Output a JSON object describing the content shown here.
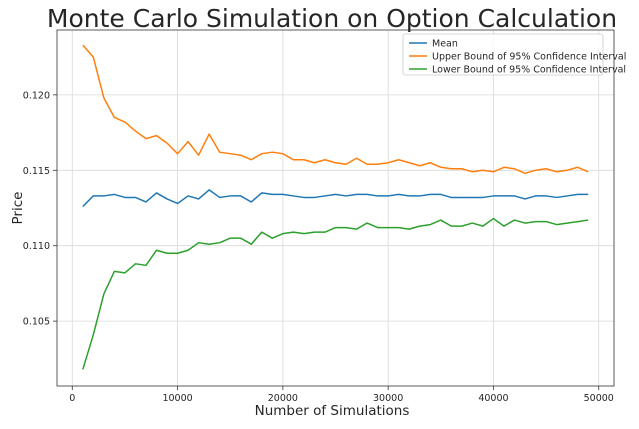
{
  "chart_data": {
    "type": "line",
    "title": "Monte Carlo Simulation on Option Calculation",
    "xlabel": "Number of Simulations",
    "ylabel": "Price",
    "xlim": [
      -1450,
      51450
    ],
    "ylim": [
      0.1007,
      0.1243
    ],
    "xticks": [
      0,
      10000,
      20000,
      30000,
      40000,
      50000
    ],
    "yticks": [
      0.105,
      0.11,
      0.115,
      0.12
    ],
    "ytick_labels": [
      "0.105",
      "0.110",
      "0.115",
      "0.120"
    ],
    "grid": true,
    "legend_position": "top-right",
    "x": [
      1000,
      2000,
      3000,
      4000,
      5000,
      6000,
      7000,
      8000,
      9000,
      10000,
      11000,
      12000,
      13000,
      14000,
      15000,
      16000,
      17000,
      18000,
      19000,
      20000,
      21000,
      22000,
      23000,
      24000,
      25000,
      26000,
      27000,
      28000,
      29000,
      30000,
      31000,
      32000,
      33000,
      34000,
      35000,
      36000,
      37000,
      38000,
      39000,
      40000,
      41000,
      42000,
      43000,
      44000,
      45000,
      46000,
      47000,
      48000,
      49000
    ],
    "series": [
      {
        "name": "Mean",
        "color": "#1f77b4",
        "values": [
          0.1126,
          0.1133,
          0.1133,
          0.1134,
          0.1132,
          0.1132,
          0.1129,
          0.1135,
          0.1131,
          0.1128,
          0.1133,
          0.1131,
          0.1137,
          0.1132,
          0.1133,
          0.1133,
          0.1129,
          0.1135,
          0.1134,
          0.1134,
          0.1133,
          0.1132,
          0.1132,
          0.1133,
          0.1134,
          0.1133,
          0.1134,
          0.1134,
          0.1133,
          0.1133,
          0.1134,
          0.1133,
          0.1133,
          0.1134,
          0.1134,
          0.1132,
          0.1132,
          0.1132,
          0.1132,
          0.1133,
          0.1133,
          0.1133,
          0.1131,
          0.1133,
          0.1133,
          0.1132,
          0.1133,
          0.1134,
          0.1134
        ]
      },
      {
        "name": "Upper Bound of 95% Confidence Interval",
        "color": "#ff7f0e",
        "values": [
          0.1233,
          0.1225,
          0.1198,
          0.1185,
          0.1182,
          0.1176,
          0.1171,
          0.1173,
          0.1168,
          0.1161,
          0.1169,
          0.116,
          0.1174,
          0.1162,
          0.1161,
          0.116,
          0.1157,
          0.1161,
          0.1162,
          0.1161,
          0.1157,
          0.1157,
          0.1155,
          0.1157,
          0.1155,
          0.1154,
          0.1158,
          0.1154,
          0.1154,
          0.1155,
          0.1157,
          0.1155,
          0.1153,
          0.1155,
          0.1152,
          0.1151,
          0.1151,
          0.1149,
          0.115,
          0.1149,
          0.1152,
          0.1151,
          0.1148,
          0.115,
          0.1151,
          0.1149,
          0.115,
          0.1152,
          0.1149
        ]
      },
      {
        "name": "Lower Bound of 95% Confidence Interval",
        "color": "#2ca02c",
        "values": [
          0.1018,
          0.1041,
          0.1068,
          0.1083,
          0.1082,
          0.1088,
          0.1087,
          0.1097,
          0.1095,
          0.1095,
          0.1097,
          0.1102,
          0.1101,
          0.1102,
          0.1105,
          0.1105,
          0.1101,
          0.1109,
          0.1105,
          0.1108,
          0.1109,
          0.1108,
          0.1109,
          0.1109,
          0.1112,
          0.1112,
          0.1111,
          0.1115,
          0.1112,
          0.1112,
          0.1112,
          0.1111,
          0.1113,
          0.1114,
          0.1117,
          0.1113,
          0.1113,
          0.1115,
          0.1113,
          0.1118,
          0.1113,
          0.1117,
          0.1115,
          0.1116,
          0.1116,
          0.1114,
          0.1115,
          0.1116,
          0.1117
        ]
      }
    ]
  }
}
